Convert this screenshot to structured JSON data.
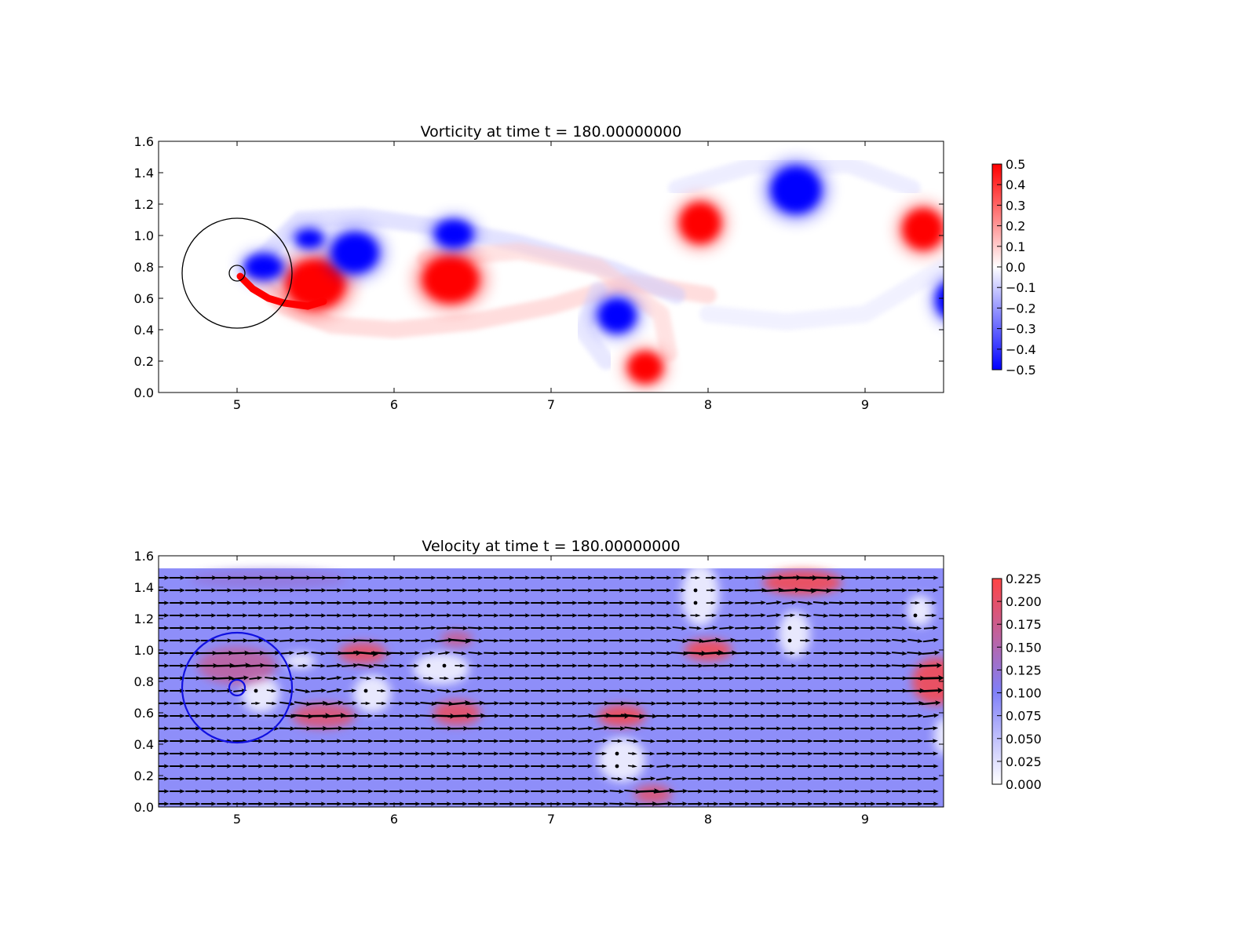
{
  "chart_data": [
    {
      "type": "heatmap",
      "title": "Vorticity at time t =   180.00000000",
      "xlim": [
        4.5,
        9.5
      ],
      "ylim": [
        0.0,
        1.6
      ],
      "xticks": [
        "5",
        "6",
        "7",
        "8",
        "9"
      ],
      "yticks": [
        "0.0",
        "0.2",
        "0.4",
        "0.6",
        "0.8",
        "1.0",
        "1.2",
        "1.4",
        "1.6"
      ],
      "grid": false,
      "colorbar": {
        "range": [
          -0.5,
          0.5
        ],
        "ticks": [
          "−0.5",
          "−0.4",
          "−0.3",
          "−0.2",
          "−0.1",
          "0.0",
          "0.1",
          "0.2",
          "0.3",
          "0.4",
          "0.5"
        ],
        "colors": [
          "#0000ff",
          "#ffffff",
          "#ff0000"
        ]
      },
      "vortices": [
        {
          "x": 5.5,
          "y": 0.69,
          "rx": 0.19,
          "ry": 0.16,
          "value": 0.5
        },
        {
          "x": 5.75,
          "y": 0.89,
          "rx": 0.15,
          "ry": 0.13,
          "value": -0.5
        },
        {
          "x": 5.46,
          "y": 0.98,
          "rx": 0.09,
          "ry": 0.06,
          "value": -0.5
        },
        {
          "x": 5.17,
          "y": 0.8,
          "rx": 0.12,
          "ry": 0.08,
          "value": -0.5
        },
        {
          "x": 6.36,
          "y": 0.72,
          "rx": 0.18,
          "ry": 0.15,
          "value": 0.5
        },
        {
          "x": 6.38,
          "y": 1.01,
          "rx": 0.12,
          "ry": 0.09,
          "value": -0.5
        },
        {
          "x": 7.42,
          "y": 0.49,
          "rx": 0.12,
          "ry": 0.11,
          "value": -0.5
        },
        {
          "x": 7.6,
          "y": 0.16,
          "rx": 0.11,
          "ry": 0.1,
          "value": 0.5
        },
        {
          "x": 7.95,
          "y": 1.08,
          "rx": 0.13,
          "ry": 0.13,
          "value": 0.5
        },
        {
          "x": 8.56,
          "y": 1.29,
          "rx": 0.16,
          "ry": 0.15,
          "value": -0.5
        },
        {
          "x": 9.37,
          "y": 1.04,
          "rx": 0.13,
          "ry": 0.13,
          "value": 0.5
        },
        {
          "x": 9.55,
          "y": 0.59,
          "rx": 0.1,
          "ry": 0.12,
          "value": -0.5
        }
      ],
      "shear_layers": [
        {
          "points": [
            [
              5.1,
              0.75
            ],
            [
              5.3,
              0.55
            ],
            [
              5.6,
              0.43
            ],
            [
              6.0,
              0.4
            ],
            [
              6.5,
              0.45
            ],
            [
              7.0,
              0.55
            ],
            [
              7.5,
              0.7
            ],
            [
              8.0,
              0.62
            ]
          ],
          "value": 0.12
        },
        {
          "points": [
            [
              5.1,
              0.8
            ],
            [
              5.4,
              1.1
            ],
            [
              5.8,
              1.12
            ],
            [
              6.3,
              1.05
            ],
            [
              6.8,
              0.95
            ],
            [
              7.4,
              0.78
            ],
            [
              7.8,
              0.62
            ]
          ],
          "value": -0.1
        },
        {
          "points": [
            [
              6.2,
              0.85
            ],
            [
              6.8,
              0.9
            ],
            [
              7.3,
              0.8
            ],
            [
              7.7,
              0.5
            ],
            [
              7.75,
              0.25
            ]
          ],
          "value": 0.1
        },
        {
          "points": [
            [
              7.3,
              0.65
            ],
            [
              7.2,
              0.4
            ],
            [
              7.35,
              0.2
            ]
          ],
          "value": -0.08
        },
        {
          "points": [
            [
              7.8,
              1.3
            ],
            [
              8.3,
              1.45
            ],
            [
              8.9,
              1.45
            ],
            [
              9.3,
              1.3
            ]
          ],
          "value": -0.06
        },
        {
          "points": [
            [
              8.0,
              0.5
            ],
            [
              8.5,
              0.45
            ],
            [
              9.0,
              0.5
            ],
            [
              9.5,
              0.8
            ]
          ],
          "value": -0.05
        }
      ],
      "cylinder": {
        "x": 5.0,
        "y": 0.76,
        "r": 0.05
      },
      "circle": {
        "x": 5.0,
        "y": 0.76,
        "r": 0.35
      }
    },
    {
      "type": "heatmap",
      "title": "Velocity at time t =   180.00000000",
      "xlim": [
        4.5,
        9.5
      ],
      "ylim": [
        0.0,
        1.6
      ],
      "xticks": [
        "5",
        "6",
        "7",
        "8",
        "9"
      ],
      "yticks": [
        "0.0",
        "0.2",
        "0.4",
        "0.6",
        "0.8",
        "1.0",
        "1.2",
        "1.4",
        "1.6"
      ],
      "grid": false,
      "field_ylim": [
        0.0,
        1.52
      ],
      "background_value": 0.1,
      "colorbar": {
        "range": [
          0.0,
          0.225
        ],
        "ticks": [
          "0.000",
          "0.025",
          "0.050",
          "0.075",
          "0.100",
          "0.125",
          "0.150",
          "0.175",
          "0.200",
          "0.225"
        ],
        "colors": [
          "#ffffff",
          "#8080f8",
          "#ff4444"
        ]
      },
      "hot_spots": [
        {
          "x": 5.0,
          "y": 0.9,
          "rx": 0.25,
          "ry": 0.12,
          "value": 0.17
        },
        {
          "x": 5.55,
          "y": 0.58,
          "rx": 0.2,
          "ry": 0.08,
          "value": 0.2
        },
        {
          "x": 5.8,
          "y": 0.98,
          "rx": 0.15,
          "ry": 0.07,
          "value": 0.21
        },
        {
          "x": 6.4,
          "y": 0.6,
          "rx": 0.15,
          "ry": 0.08,
          "value": 0.21
        },
        {
          "x": 6.4,
          "y": 1.07,
          "rx": 0.1,
          "ry": 0.05,
          "value": 0.18
        },
        {
          "x": 7.45,
          "y": 0.58,
          "rx": 0.15,
          "ry": 0.07,
          "value": 0.22
        },
        {
          "x": 7.65,
          "y": 0.08,
          "rx": 0.12,
          "ry": 0.06,
          "value": 0.2
        },
        {
          "x": 8.0,
          "y": 1.0,
          "rx": 0.15,
          "ry": 0.07,
          "value": 0.22
        },
        {
          "x": 8.6,
          "y": 1.43,
          "rx": 0.25,
          "ry": 0.08,
          "value": 0.22
        },
        {
          "x": 9.45,
          "y": 0.8,
          "rx": 0.15,
          "ry": 0.15,
          "value": 0.22
        },
        {
          "x": 5.2,
          "y": 1.45,
          "rx": 0.5,
          "ry": 0.06,
          "value": 0.13
        }
      ],
      "calm_spots": [
        {
          "x": 5.15,
          "y": 0.72,
          "rx": 0.12,
          "ry": 0.12
        },
        {
          "x": 5.4,
          "y": 0.93,
          "rx": 0.1,
          "ry": 0.05
        },
        {
          "x": 5.86,
          "y": 0.72,
          "rx": 0.12,
          "ry": 0.12
        },
        {
          "x": 6.3,
          "y": 0.88,
          "rx": 0.18,
          "ry": 0.1
        },
        {
          "x": 7.45,
          "y": 0.3,
          "rx": 0.15,
          "ry": 0.14
        },
        {
          "x": 7.95,
          "y": 1.35,
          "rx": 0.12,
          "ry": 0.2
        },
        {
          "x": 8.55,
          "y": 1.1,
          "rx": 0.1,
          "ry": 0.15
        },
        {
          "x": 9.35,
          "y": 1.25,
          "rx": 0.08,
          "ry": 0.1
        },
        {
          "x": 9.5,
          "y": 0.45,
          "rx": 0.06,
          "ry": 0.12
        }
      ],
      "cylinder": {
        "x": 5.0,
        "y": 0.76,
        "r": 0.05
      },
      "circle": {
        "x": 5.0,
        "y": 0.76,
        "r": 0.35
      }
    }
  ]
}
